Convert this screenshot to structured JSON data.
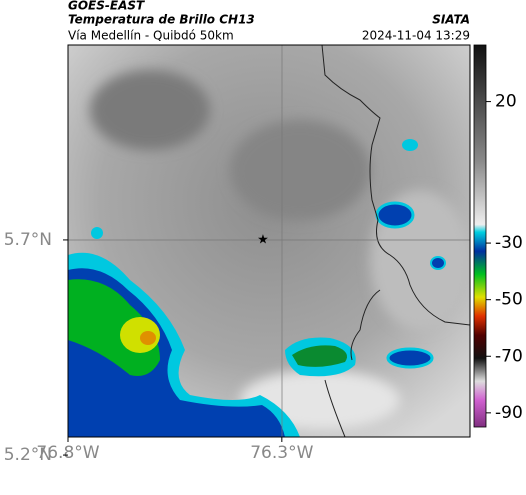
{
  "header": {
    "title": "GOES-EAST",
    "subtitle": "Temperatura de Brillo CH13",
    "source": "SIATA",
    "route": "Vía Medellín - Quibdó 50km",
    "timestamp": "2024-11-04 13:29"
  },
  "map": {
    "xlim": [
      -76.8,
      -75.86
    ],
    "ylim": [
      5.242,
      6.153
    ],
    "xticks": [
      {
        "value": -76.8,
        "label": "76.8°W"
      },
      {
        "value": -76.3,
        "label": "76.3°W"
      }
    ],
    "yticks": [
      {
        "value": 5.7,
        "label": "5.7°N"
      },
      {
        "value": 5.2,
        "label": "5.2°N"
      }
    ],
    "colorbar": {
      "lim": [
        -95,
        40
      ],
      "ticks": [
        20,
        -30,
        -50,
        -70,
        -90
      ]
    }
  }
}
